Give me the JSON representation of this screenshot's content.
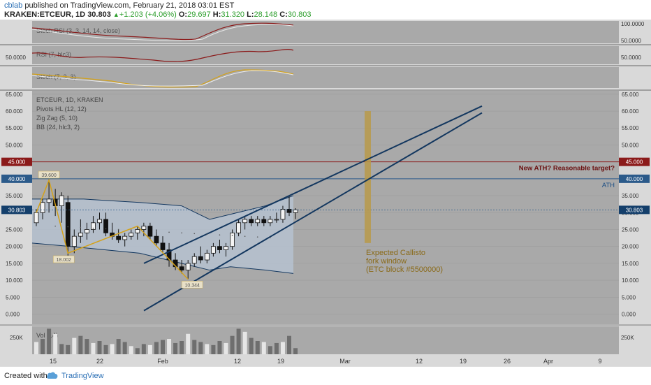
{
  "header": {
    "user": "cblab",
    "published": "published on TradingView.com, February 21, 2018 03:01 EST",
    "symbol": "KRAKEN:ETCEUR, 1D",
    "last": "30.803",
    "change": "+1.203 (+4.06%)",
    "open_label": "O:",
    "open": "29.697",
    "high_label": "H:",
    "high": "31.320",
    "low_label": "L:",
    "low": "28.148",
    "close_label": "C:",
    "close": "30.803"
  },
  "footer": {
    "created": "Created with",
    "brand": "TradingView"
  },
  "colors": {
    "panel_bg": "#a9a9a9",
    "band_fill": "#b9c7d8",
    "trend_line": "#13375f",
    "ath_line": "#2b5a8a",
    "target_line": "#8b1a1a",
    "zigzag": "#d4a21a",
    "window_fill": "#b89a4a"
  },
  "indicators": {
    "stoch_rsi": {
      "label": "Stoch RSI (3, 3, 14, 14, close)",
      "axis": [
        "100.0000",
        "50.0000"
      ]
    },
    "rsi": {
      "label": "RSI (7, hlc3)",
      "axis_left": "50.0000",
      "axis_right": "50.0000"
    },
    "stoch": {
      "label": "Stoch (7, 3, 3)"
    }
  },
  "chart_data": {
    "type": "candlestick",
    "title": "ETCEUR, 1D, KRAKEN",
    "legend": [
      "Pivots HL (12, 12)",
      "Zig Zag (5, 10)",
      "BB (24, hlc3, 2)"
    ],
    "x_ticks": [
      "15",
      "22",
      "Feb",
      "12",
      "19",
      "Mar",
      "12",
      "19",
      "26",
      "Apr",
      "9"
    ],
    "y_ticks": [
      "65.000",
      "60.000",
      "55.000",
      "50.000",
      "45.000",
      "40.000",
      "35.000",
      "30.000",
      "25.000",
      "20.000",
      "15.000",
      "10.000",
      "5.000",
      "0.000"
    ],
    "y_left_ticks": [
      "65.000",
      "60.000",
      "55.000",
      "50.000",
      "40.000",
      "35.000",
      "25.000",
      "20.000",
      "15.000",
      "10.000",
      "5.000",
      "0.000"
    ],
    "ylim": [
      -3,
      66
    ],
    "price_badges": {
      "target": "45.000",
      "ath": "40.000",
      "last": "30.803"
    },
    "annotations": {
      "target": "New ATH? Reasonable target?",
      "ath": "ATH",
      "window_lines": [
        "Expected Callisto",
        "fork window",
        "(ETC block #5500000)"
      ],
      "pivot_high": "39.600",
      "pivot_low1": "18.002",
      "pivot_low2": "10.344"
    },
    "candles": [
      {
        "o": 27,
        "h": 31,
        "l": 26,
        "c": 30
      },
      {
        "o": 30,
        "h": 34,
        "l": 28,
        "c": 33
      },
      {
        "o": 33,
        "h": 40,
        "l": 30,
        "c": 34
      },
      {
        "o": 34,
        "h": 37,
        "l": 29,
        "c": 32
      },
      {
        "o": 32,
        "h": 36,
        "l": 27,
        "c": 35
      },
      {
        "o": 33,
        "h": 35,
        "l": 17,
        "c": 20
      },
      {
        "o": 20,
        "h": 25,
        "l": 18,
        "c": 23
      },
      {
        "o": 23,
        "h": 28,
        "l": 21,
        "c": 24
      },
      {
        "o": 24,
        "h": 27,
        "l": 22,
        "c": 25
      },
      {
        "o": 25,
        "h": 29,
        "l": 24,
        "c": 27
      },
      {
        "o": 27,
        "h": 30,
        "l": 25,
        "c": 28
      },
      {
        "o": 28,
        "h": 30,
        "l": 23,
        "c": 24
      },
      {
        "o": 24,
        "h": 27,
        "l": 22,
        "c": 23
      },
      {
        "o": 23,
        "h": 25,
        "l": 21,
        "c": 22
      },
      {
        "o": 22,
        "h": 24,
        "l": 20,
        "c": 23
      },
      {
        "o": 23,
        "h": 25,
        "l": 22,
        "c": 24
      },
      {
        "o": 24,
        "h": 26,
        "l": 22,
        "c": 25
      },
      {
        "o": 25,
        "h": 27,
        "l": 23,
        "c": 26
      },
      {
        "o": 26,
        "h": 27,
        "l": 22,
        "c": 23
      },
      {
        "o": 23,
        "h": 25,
        "l": 20,
        "c": 21
      },
      {
        "o": 21,
        "h": 23,
        "l": 18,
        "c": 19
      },
      {
        "o": 19,
        "h": 21,
        "l": 14,
        "c": 16
      },
      {
        "o": 16,
        "h": 18,
        "l": 13,
        "c": 14
      },
      {
        "o": 14,
        "h": 16,
        "l": 12,
        "c": 13
      },
      {
        "o": 13,
        "h": 16,
        "l": 10.3,
        "c": 15
      },
      {
        "o": 15,
        "h": 18,
        "l": 14,
        "c": 17
      },
      {
        "o": 17,
        "h": 20,
        "l": 15,
        "c": 16
      },
      {
        "o": 16,
        "h": 19,
        "l": 15,
        "c": 18
      },
      {
        "o": 18,
        "h": 21,
        "l": 17,
        "c": 20
      },
      {
        "o": 20,
        "h": 22,
        "l": 18,
        "c": 19
      },
      {
        "o": 19,
        "h": 21,
        "l": 17,
        "c": 20
      },
      {
        "o": 20,
        "h": 25,
        "l": 19,
        "c": 24
      },
      {
        "o": 24,
        "h": 28,
        "l": 23,
        "c": 27
      },
      {
        "o": 27,
        "h": 29,
        "l": 25,
        "c": 28
      },
      {
        "o": 28,
        "h": 29,
        "l": 26,
        "c": 27
      },
      {
        "o": 27,
        "h": 29,
        "l": 26,
        "c": 28
      },
      {
        "o": 28,
        "h": 29,
        "l": 26,
        "c": 27
      },
      {
        "o": 27,
        "h": 29,
        "l": 26,
        "c": 28
      },
      {
        "o": 28,
        "h": 30,
        "l": 27,
        "c": 28
      },
      {
        "o": 28,
        "h": 32,
        "l": 27,
        "c": 31
      },
      {
        "o": 31,
        "h": 35,
        "l": 29,
        "c": 30
      },
      {
        "o": 30,
        "h": 31.3,
        "l": 28.1,
        "c": 30.8
      }
    ],
    "volume": {
      "axis": [
        "250K",
        "250K"
      ],
      "values": [
        120,
        150,
        250,
        200,
        100,
        90,
        160,
        180,
        150,
        110,
        130,
        90,
        100,
        150,
        120,
        80,
        60,
        100,
        90,
        120,
        140,
        150,
        110,
        130,
        200,
        140,
        120,
        100,
        90,
        130,
        110,
        180,
        250,
        220,
        160,
        130,
        120,
        80,
        110,
        120,
        180,
        60
      ]
    },
    "vol_label": "Vol (14)"
  }
}
